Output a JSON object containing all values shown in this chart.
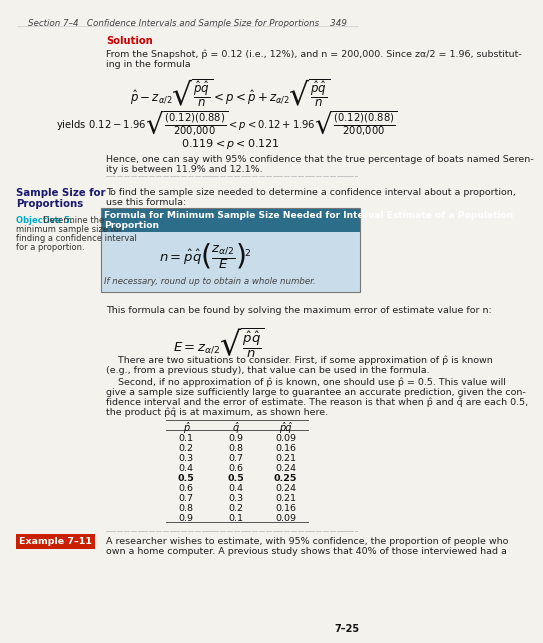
{
  "page_header": "Section 7–4   Confidence Intervals and Sample Size for Proportions    349",
  "solution_title": "Solution",
  "solution_text1": "From the Snapshot, p̂ = 0.12 (i.e., 12%), and n = 200,000. Since zα/2 = 1.96, substitut-",
  "solution_text2": "ing in the formula",
  "formula1": "$\\hat{p} - z_{\\alpha/2}\\sqrt{\\dfrac{\\hat{p}\\hat{q}}{n}} < p < \\hat{p} + z_{\\alpha/2}\\sqrt{\\dfrac{\\hat{p}\\hat{q}}{n}}$",
  "formula2": "yields $0.12 - 1.96\\sqrt{\\dfrac{(0.12)(0.88)}{200{,}000}} < p < 0.12 + 1.96\\sqrt{\\dfrac{(0.12)(0.88)}{200{,}000}}$",
  "formula3": "$0.119 < p < 0.121$",
  "hence_text": "Hence, one can say with 95% confidence that the true percentage of boats named Seren-",
  "hence_text2": "ity is between 11.9% and 12.1%.",
  "left_heading1": "Sample Size for",
  "left_heading2": "Proportions",
  "obj_label": "Objective 5.",
  "obj_text1": "Determine the",
  "obj_text2": "minimum sample size for",
  "obj_text3": "finding a confidence interval",
  "obj_text4": "for a proportion.",
  "intro_text1": "To find the sample size needed to determine a confidence interval about a proportion,",
  "intro_text2": "use this formula:",
  "box_title": "Formula for Minimum Sample Size Needed for Interval Estimate of a Population",
  "box_title2": "Proportion",
  "box_formula": "$n = \\hat{p}\\hat{q}\\left(\\dfrac{z_{\\alpha/2}}{E}\\right)^{\\!2}$",
  "box_note": "If necessary, round up to obtain a whole number.",
  "formula_text1": "This formula can be found by solving the maximum error of estimate value for n:",
  "formula_E": "$E = z_{\\alpha/2}\\sqrt{\\dfrac{\\hat{p}\\hat{q}}{n}}$",
  "para1_text": "    There are two situations to consider. First, if some approximation of p̂ is known",
  "para1_text2": "(e.g., from a previous study), that value can be used in the formula.",
  "para2_text": "    Second, if no approximation of p̂ is known, one should use p̂ = 0.5. This value will",
  "para2_text2": "give a sample size sufficiently large to guarantee an accurate prediction, given the con-",
  "para2_text3": "fidence interval and the error of estimate. The reason is that when p̂ and q̂ are each 0.5,",
  "para2_text4": "the product p̂q̂ is at maximum, as shown here.",
  "table_headers": [
    "p̂",
    "q̂",
    "p̂q̂"
  ],
  "table_data": [
    [
      "0.1",
      "0.9",
      "0.09"
    ],
    [
      "0.2",
      "0.8",
      "0.16"
    ],
    [
      "0.3",
      "0.7",
      "0.21"
    ],
    [
      "0.4",
      "0.6",
      "0.24"
    ],
    [
      "0.5",
      "0.5",
      "0.25"
    ],
    [
      "0.6",
      "0.4",
      "0.24"
    ],
    [
      "0.7",
      "0.3",
      "0.21"
    ],
    [
      "0.8",
      "0.2",
      "0.16"
    ],
    [
      "0.9",
      "0.1",
      "0.09"
    ]
  ],
  "bold_row": 4,
  "example_label": "Example 7–11",
  "example_text1": "A researcher wishes to estimate, with 95% confidence, the proportion of people who",
  "example_text2": "own a home computer. A previous study shows that 40% of those interviewed had a",
  "page_num": "7–25",
  "solution_color": "#cc0000",
  "heading_color": "#1a1a6e",
  "obj_color": "#00aacc",
  "box_bg_color": "#c8dcea",
  "box_header_color": "#2c6e8a",
  "example_bg_color": "#c82000",
  "dotted_line_color": "#aaaaaa",
  "bg_color": "#f4f2ec"
}
